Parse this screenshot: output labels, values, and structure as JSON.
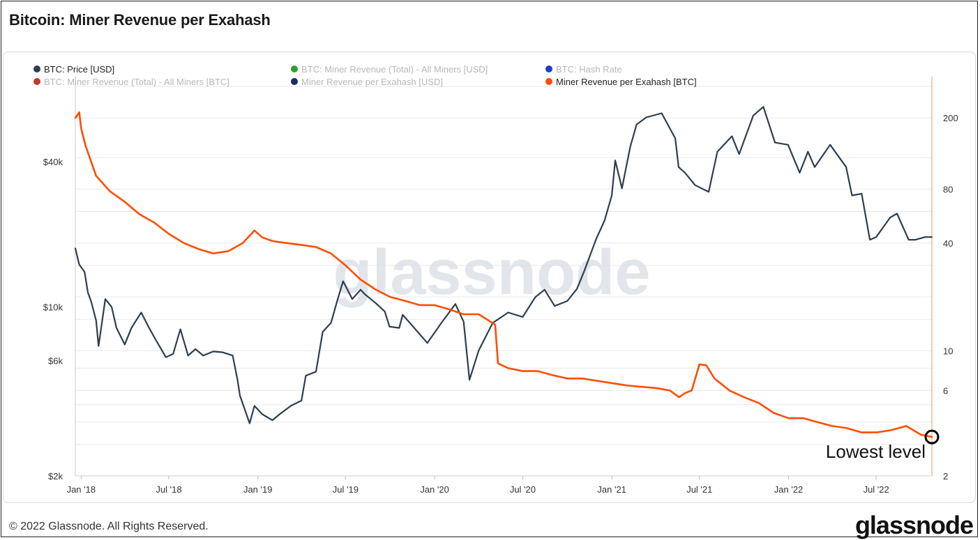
{
  "title": "Bitcoin: Miner Revenue per Exahash",
  "footer": {
    "copyright": "© 2022 Glassnode. All Rights Reserved.",
    "logo": "glassnode"
  },
  "watermark": "glassnode",
  "colors": {
    "price": "#2c3e50",
    "revenue_btc": "#ff4d00",
    "annotation": "#000000",
    "right_axis": "#f3a87a"
  },
  "chart_data": {
    "type": "line",
    "title": "Bitcoin: Miner Revenue per Exahash",
    "legend": {
      "placement": "top-left",
      "entries": [
        {
          "label": "BTC: Price [USD]",
          "color": "#2c3e50",
          "active": true
        },
        {
          "label": "BTC: Miner Revenue (Total) - All Miners [USD]",
          "color": "#2ca02c",
          "active": false
        },
        {
          "label": "BTC: Hash Rate",
          "color": "#1f3fbf",
          "active": false
        },
        {
          "label": "BTC: Miner Revenue (Total) - All Miners [BTC]",
          "color": "#c0392b",
          "active": false
        },
        {
          "label": "Miner Revenue per Exahash [USD]",
          "color": "#1b2f5b",
          "active": false
        },
        {
          "label": "Miner Revenue per Exahash [BTC]",
          "color": "#ff4d00",
          "active": true
        }
      ]
    },
    "x_tick_labels": [
      "Jan '18",
      "Jul '18",
      "Jan '19",
      "Jul '19",
      "Jan '20",
      "Jul '20",
      "Jan '21",
      "Jul '21",
      "Jan '22",
      "Jul '22"
    ],
    "x_ticks": [
      "2018-01-01",
      "2018-07-01",
      "2019-01-01",
      "2019-07-01",
      "2020-01-01",
      "2020-07-01",
      "2021-01-01",
      "2021-07-01",
      "2022-01-01",
      "2022-07-01"
    ],
    "xlim": [
      "2017-12-20",
      "2022-10-24"
    ],
    "y_left": {
      "scale": "log",
      "ylim": [
        2000,
        90000
      ],
      "tick_values": [
        2000,
        6000,
        10000,
        40000
      ],
      "tick_labels": [
        "$2k",
        "$6k",
        "$10k",
        "$40k"
      ]
    },
    "y_right": {
      "scale": "log",
      "ylim": [
        2,
        340
      ],
      "tick_values": [
        2,
        6,
        10,
        40,
        80,
        200
      ],
      "tick_labels": [
        "2",
        "6",
        "10",
        "40",
        "80",
        "200"
      ]
    },
    "grid": true,
    "series": [
      {
        "name": "BTC: Price [USD]",
        "axis": "left",
        "color": "#2c3e50",
        "x": [
          "2017-12-20",
          "2017-12-28",
          "2018-01-08",
          "2018-01-15",
          "2018-01-22",
          "2018-02-01",
          "2018-02-06",
          "2018-02-20",
          "2018-03-05",
          "2018-03-15",
          "2018-04-01",
          "2018-04-15",
          "2018-05-05",
          "2018-05-20",
          "2018-06-01",
          "2018-06-25",
          "2018-07-10",
          "2018-07-25",
          "2018-08-10",
          "2018-08-25",
          "2018-09-10",
          "2018-10-01",
          "2018-10-20",
          "2018-11-10",
          "2018-11-20",
          "2018-11-25",
          "2018-12-15",
          "2018-12-25",
          "2019-01-10",
          "2019-01-31",
          "2019-02-15",
          "2019-03-10",
          "2019-04-01",
          "2019-04-10",
          "2019-05-01",
          "2019-05-15",
          "2019-06-01",
          "2019-06-15",
          "2019-06-26",
          "2019-07-15",
          "2019-08-01",
          "2019-08-10",
          "2019-09-01",
          "2019-09-20",
          "2019-09-30",
          "2019-10-20",
          "2019-10-27",
          "2019-11-20",
          "2019-12-17",
          "2020-01-15",
          "2020-02-13",
          "2020-03-01",
          "2020-03-13",
          "2020-04-01",
          "2020-04-30",
          "2020-06-01",
          "2020-07-01",
          "2020-07-27",
          "2020-08-15",
          "2020-09-05",
          "2020-10-01",
          "2020-10-21",
          "2020-11-05",
          "2020-11-30",
          "2020-12-17",
          "2021-01-01",
          "2021-01-08",
          "2021-01-22",
          "2021-02-08",
          "2021-02-21",
          "2021-03-13",
          "2021-04-14",
          "2021-05-12",
          "2021-05-19",
          "2021-06-01",
          "2021-06-22",
          "2021-07-20",
          "2021-08-07",
          "2021-09-06",
          "2021-09-21",
          "2021-10-20",
          "2021-11-10",
          "2021-12-04",
          "2021-12-31",
          "2022-01-24",
          "2022-02-10",
          "2022-02-24",
          "2022-03-28",
          "2022-04-30",
          "2022-05-12",
          "2022-06-01",
          "2022-06-18",
          "2022-07-01",
          "2022-07-30",
          "2022-08-13",
          "2022-09-06",
          "2022-09-20",
          "2022-10-10",
          "2022-10-24"
        ],
        "y": [
          17500,
          15000,
          14000,
          11500,
          10500,
          8800,
          6900,
          10800,
          10000,
          8200,
          7000,
          8200,
          9500,
          8300,
          7500,
          6200,
          6400,
          8100,
          6300,
          6700,
          6300,
          6550,
          6500,
          6300,
          5000,
          4300,
          3300,
          3900,
          3600,
          3400,
          3600,
          3900,
          4100,
          5200,
          5400,
          7900,
          8600,
          10800,
          12800,
          10800,
          11800,
          11300,
          10400,
          9600,
          8300,
          8200,
          9300,
          8200,
          7100,
          8600,
          10300,
          8700,
          5000,
          6600,
          8600,
          9500,
          9100,
          11000,
          11800,
          10100,
          10600,
          11900,
          14100,
          19200,
          22800,
          29000,
          40500,
          31000,
          46000,
          57000,
          61000,
          63500,
          50000,
          38000,
          36000,
          32000,
          30000,
          44000,
          51000,
          43000,
          62000,
          67500,
          48000,
          47000,
          36000,
          44000,
          38000,
          47000,
          38000,
          29000,
          29500,
          19000,
          19500,
          23500,
          24400,
          19000,
          19000,
          19500,
          19500
        ]
      },
      {
        "name": "Miner Revenue per Exahash [BTC]",
        "axis": "right",
        "color": "#ff4d00",
        "x": [
          "2017-12-20",
          "2017-12-28",
          "2018-01-01",
          "2018-01-10",
          "2018-02-01",
          "2018-03-01",
          "2018-04-01",
          "2018-05-01",
          "2018-06-01",
          "2018-07-01",
          "2018-08-01",
          "2018-09-01",
          "2018-10-01",
          "2018-11-01",
          "2018-12-01",
          "2018-12-25",
          "2019-01-10",
          "2019-02-01",
          "2019-03-01",
          "2019-04-01",
          "2019-05-01",
          "2019-06-01",
          "2019-07-01",
          "2019-08-01",
          "2019-09-01",
          "2019-10-01",
          "2019-11-01",
          "2019-12-01",
          "2020-01-01",
          "2020-02-01",
          "2020-03-01",
          "2020-04-01",
          "2020-05-05",
          "2020-05-11",
          "2020-06-01",
          "2020-07-01",
          "2020-08-01",
          "2020-09-01",
          "2020-10-01",
          "2020-11-01",
          "2020-12-01",
          "2021-01-01",
          "2021-02-01",
          "2021-03-01",
          "2021-04-01",
          "2021-05-01",
          "2021-05-20",
          "2021-06-01",
          "2021-06-15",
          "2021-07-01",
          "2021-07-15",
          "2021-08-01",
          "2021-09-01",
          "2021-10-01",
          "2021-11-01",
          "2021-12-01",
          "2022-01-01",
          "2022-02-01",
          "2022-03-01",
          "2022-04-01",
          "2022-05-01",
          "2022-06-01",
          "2022-07-01",
          "2022-08-01",
          "2022-09-01",
          "2022-10-01",
          "2022-10-24"
        ],
        "y": [
          200,
          215,
          175,
          140,
          95,
          78,
          68,
          58,
          52,
          45,
          40,
          37,
          35,
          36,
          40,
          47,
          43,
          41,
          40,
          39,
          38,
          35,
          30,
          25,
          22,
          20,
          19,
          18,
          18,
          17,
          16,
          16,
          14,
          8.5,
          8,
          7.7,
          7.7,
          7.3,
          7,
          7,
          6.8,
          6.6,
          6.4,
          6.3,
          6.2,
          6,
          5.5,
          5.8,
          6,
          8.4,
          8.3,
          7,
          6,
          5.5,
          5.1,
          4.5,
          4.2,
          4.2,
          4,
          3.8,
          3.7,
          3.5,
          3.5,
          3.6,
          3.8,
          3.4,
          3.3
        ]
      }
    ],
    "annotations": [
      {
        "text": "Lowest level",
        "x": "2022-10-24",
        "y": 3.3,
        "axis": "right",
        "marker": "circle"
      }
    ]
  }
}
